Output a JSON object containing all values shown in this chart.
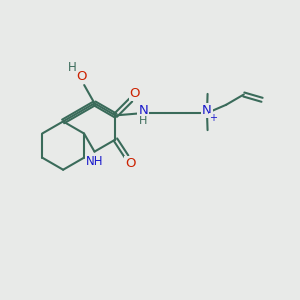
{
  "bg_color": "#e8eae8",
  "bond_color": "#3a6b5a",
  "bond_width": 1.5,
  "atom_colors": {
    "C": "#3a6b5a",
    "N": "#1a1acc",
    "O": "#cc2200",
    "H": "#3a6b5a",
    "plus": "#1a1acc"
  },
  "font_size": 8.5,
  "fig_size": [
    3.0,
    3.0
  ],
  "dpi": 100
}
